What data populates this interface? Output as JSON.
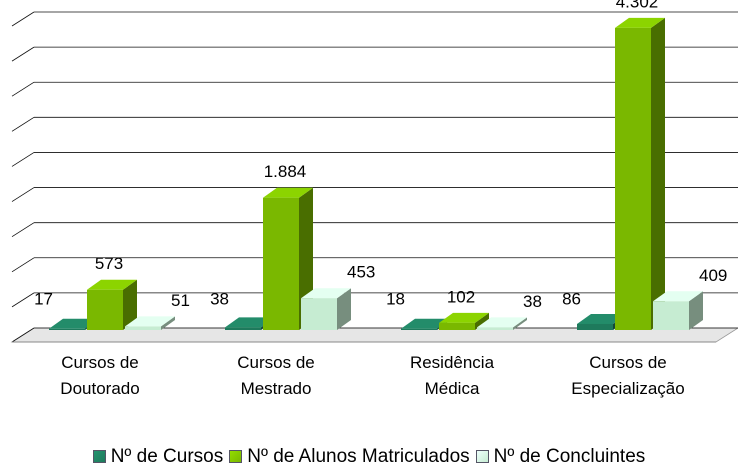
{
  "chart_data": {
    "type": "bar",
    "categories": [
      "Cursos de Doutorado",
      "Cursos de Mestrado",
      "Residência Médica",
      "Cursos de Especialização"
    ],
    "series": [
      {
        "name": "Nº de Cursos",
        "color": "#1e7a5c",
        "values": [
          17,
          38,
          18,
          86
        ]
      },
      {
        "name": "Nº de Alunos Matriculados",
        "color": "#7ab800",
        "values": [
          573,
          1884,
          102,
          4302
        ],
        "value_labels": [
          "573",
          "1.884",
          "102",
          "4.302"
        ]
      },
      {
        "name": "Nº de Concluintes",
        "color": "#c6ecd2",
        "values": [
          51,
          453,
          38,
          409
        ]
      }
    ],
    "ylim": [
      0,
      4500
    ],
    "yticks": [
      0,
      500,
      1000,
      1500,
      2000,
      2500,
      3000,
      3500,
      4000,
      4500
    ],
    "grid": true
  }
}
